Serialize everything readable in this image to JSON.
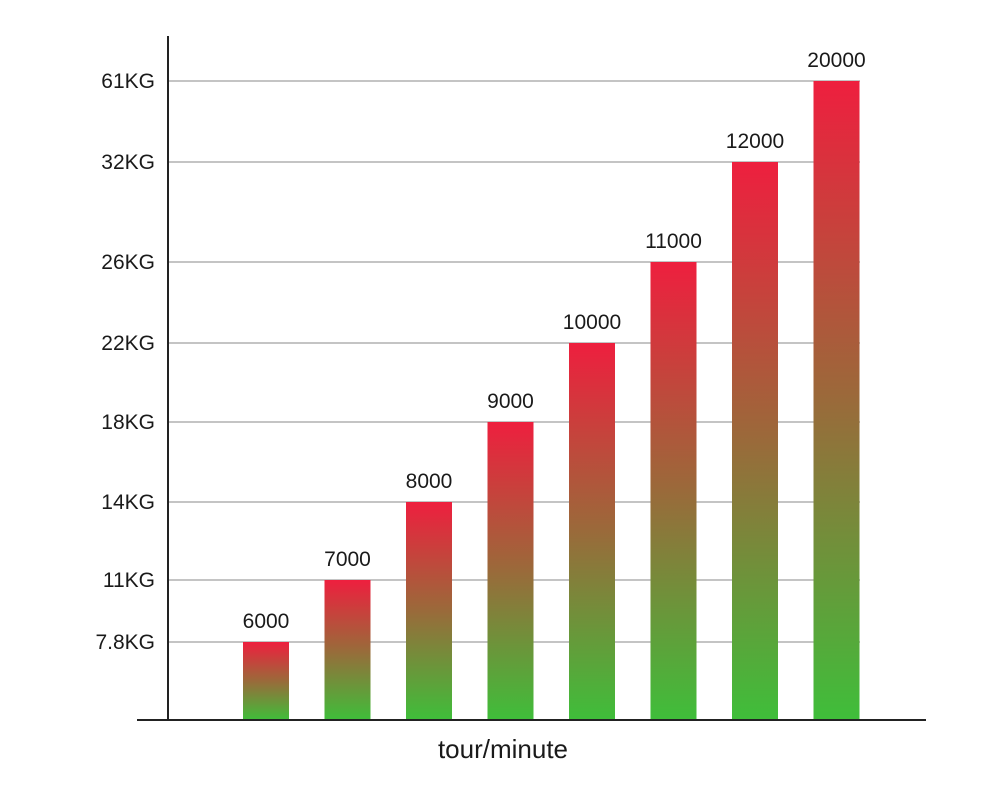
{
  "chart_data": {
    "type": "bar",
    "xlabel": "tour/minute",
    "ylabel": "",
    "y_tick_labels": [
      "7.8KG",
      "11KG",
      "14KG",
      "18KG",
      "22KG",
      "26KG",
      "32KG",
      "61KG"
    ],
    "categories": [
      "6000",
      "7000",
      "8000",
      "9000",
      "10000",
      "11000",
      "12000",
      "20000"
    ],
    "values": [
      7.8,
      11,
      14,
      18,
      22,
      26,
      32,
      61
    ],
    "value_unit": "KG",
    "y_axis_note": "ticks are category-spaced, not linear",
    "grid": true,
    "bar_gradient": {
      "top": "#ee1f3e",
      "bottom": "#3fbe3a"
    },
    "colors": {
      "axis": "#222222",
      "grid": "#8a8a8a"
    }
  }
}
